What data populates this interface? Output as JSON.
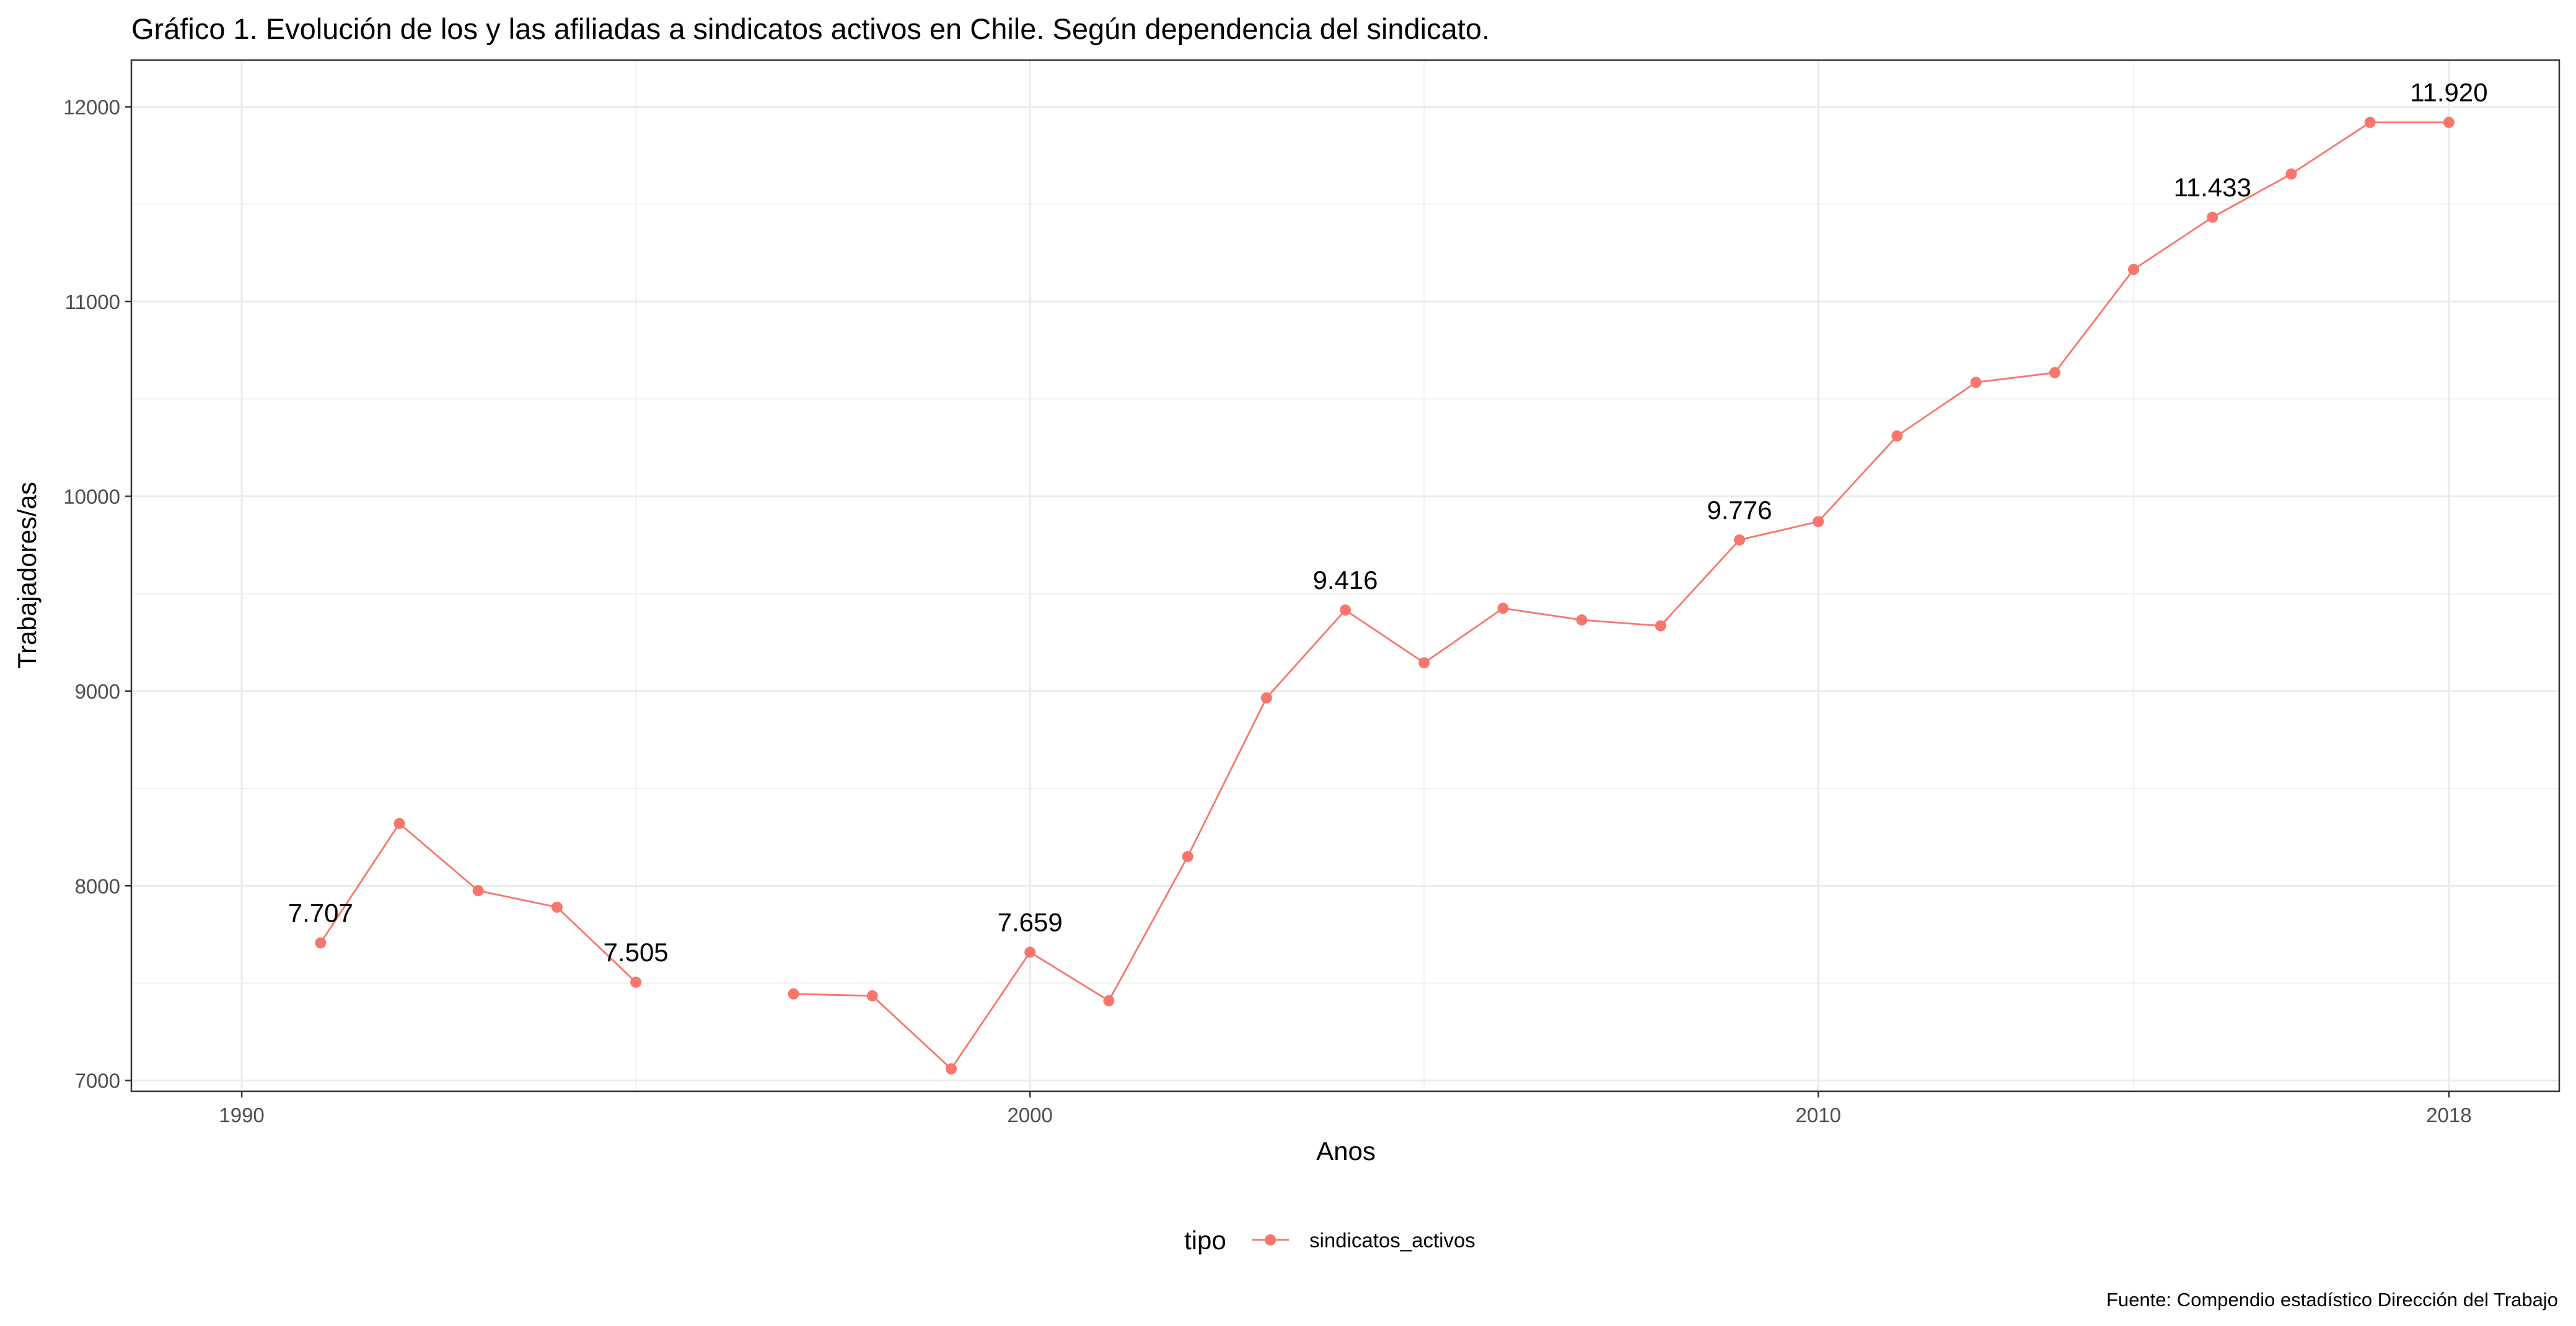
{
  "chart_data": {
    "type": "line",
    "title": "Gráfico 1. Evolución de los y las afiliadas a sindicatos activos en Chile. Según dependencia del sindicato.",
    "xlabel": "Anos",
    "ylabel": "Trabajadores/as",
    "caption": "Fuente: Compendio estadístico Dirección del Trabajo",
    "xlim": [
      1988.6,
      2019.4
    ],
    "ylim": [
      6945,
      12240
    ],
    "x_ticks": [
      1990,
      2000,
      2010,
      2018
    ],
    "x_tick_labels": [
      "1990",
      "2000",
      "2010",
      "2018"
    ],
    "y_ticks": [
      7000,
      8000,
      9000,
      10000,
      11000,
      12000
    ],
    "y_tick_labels": [
      "7000",
      "8000",
      "9000",
      "10000",
      "11000",
      "12000"
    ],
    "grid": true,
    "legend": {
      "title": "tipo",
      "position": "bottom"
    },
    "series": [
      {
        "name": "sindicatos_activos",
        "color": "#F8766D",
        "x": [
          1991,
          1992,
          1993,
          1994,
          1995,
          1996,
          1997,
          1998,
          1999,
          2000,
          2001,
          2002,
          2003,
          2004,
          2005,
          2006,
          2007,
          2008,
          2009,
          2010,
          2011,
          2012,
          2013,
          2014,
          2015,
          2016,
          2017,
          2018
        ],
        "values": [
          7707,
          8320,
          7975,
          7890,
          7505,
          null,
          7445,
          7435,
          7060,
          7659,
          7410,
          8150,
          8965,
          9416,
          9145,
          9425,
          9365,
          9335,
          9776,
          9870,
          10310,
          10585,
          10635,
          11165,
          11433,
          11655,
          11920,
          11920
        ]
      }
    ],
    "annotations": [
      {
        "x": 1991,
        "y": 7707,
        "text": "7.707"
      },
      {
        "x": 1995,
        "y": 7505,
        "text": "7.505"
      },
      {
        "x": 2000,
        "y": 7659,
        "text": "7.659"
      },
      {
        "x": 2004,
        "y": 9416,
        "text": "9.416"
      },
      {
        "x": 2009,
        "y": 9776,
        "text": "9.776"
      },
      {
        "x": 2015,
        "y": 11433,
        "text": "11.433"
      },
      {
        "x": 2018,
        "y": 11920,
        "text": "11.920"
      }
    ]
  }
}
